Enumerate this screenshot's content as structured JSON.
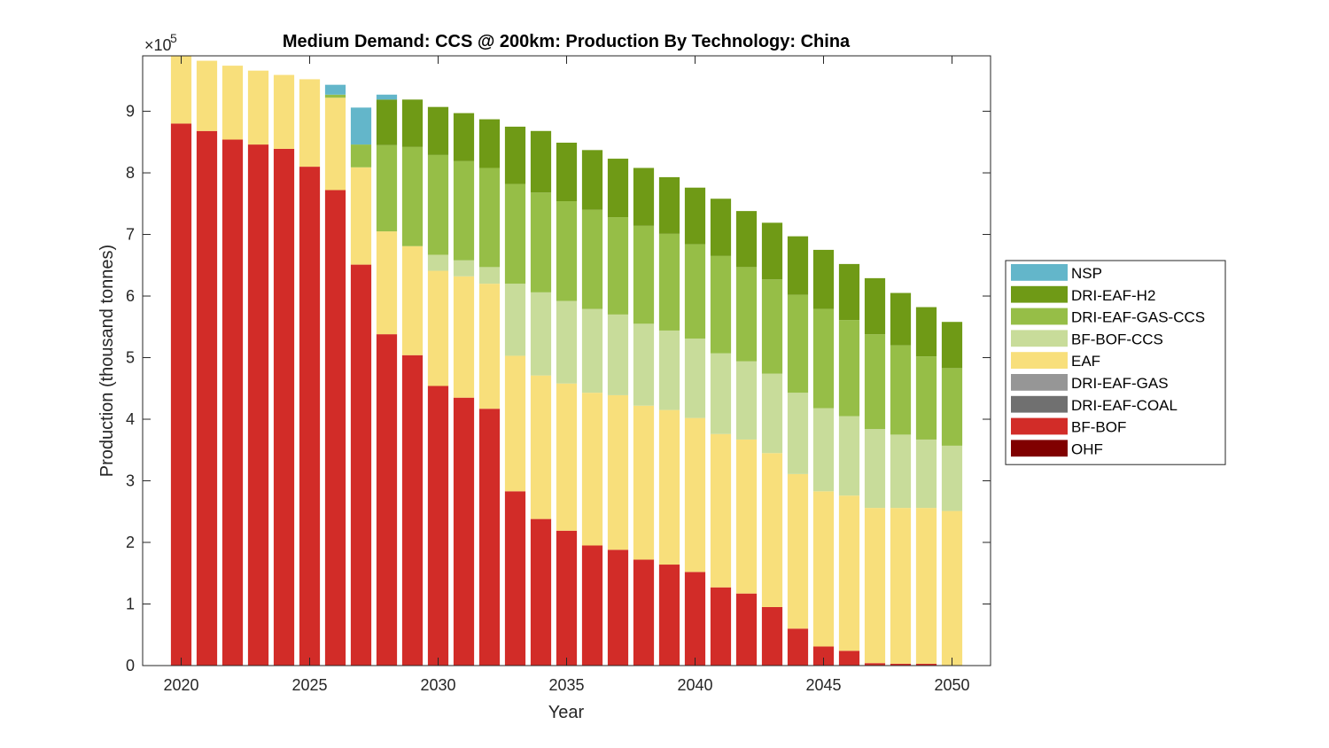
{
  "chart_data": {
    "type": "bar",
    "stacked": true,
    "title": "Medium Demand: CCS @ 200km: Production By Technology: China",
    "xlabel": "Year",
    "ylabel": "Production (thousand tonnes)",
    "y_exponent_label": "×10",
    "y_exponent_power": "5",
    "ylim": [
      0,
      9.9
    ],
    "y_scale_multiplier": 100000,
    "yticks": [
      0,
      1,
      2,
      3,
      4,
      5,
      6,
      7,
      8,
      9
    ],
    "xticks": [
      2020,
      2025,
      2030,
      2035,
      2040,
      2045,
      2050
    ],
    "xlim": [
      2018.5,
      2051.5
    ],
    "grid": false,
    "legend_position": "outside-right",
    "categories": [
      2020,
      2021,
      2022,
      2023,
      2024,
      2025,
      2026,
      2027,
      2028,
      2029,
      2030,
      2031,
      2032,
      2033,
      2034,
      2035,
      2036,
      2037,
      2038,
      2039,
      2040,
      2041,
      2042,
      2043,
      2044,
      2045,
      2046,
      2047,
      2048,
      2049,
      2050
    ],
    "series": [
      {
        "name": "OHF",
        "color": "#800000",
        "values": [
          0,
          0,
          0,
          0,
          0,
          0,
          0,
          0,
          0,
          0,
          0,
          0,
          0,
          0,
          0,
          0,
          0,
          0,
          0,
          0,
          0,
          0,
          0,
          0,
          0,
          0,
          0,
          0,
          0,
          0,
          0
        ]
      },
      {
        "name": "BF-BOF",
        "color": "#D22C28",
        "values": [
          8.8,
          8.68,
          8.54,
          8.46,
          8.39,
          8.1,
          7.72,
          6.51,
          5.38,
          5.04,
          4.54,
          4.35,
          4.17,
          2.83,
          2.38,
          2.19,
          1.95,
          1.88,
          1.72,
          1.64,
          1.52,
          1.27,
          1.17,
          0.95,
          0.6,
          0.31,
          0.24,
          0.04,
          0.03,
          0.03,
          0
        ]
      },
      {
        "name": "DRI-EAF-COAL",
        "color": "#707070",
        "values": [
          0,
          0,
          0,
          0,
          0,
          0,
          0,
          0,
          0,
          0,
          0,
          0,
          0,
          0,
          0,
          0,
          0,
          0,
          0,
          0,
          0,
          0,
          0,
          0,
          0,
          0,
          0,
          0,
          0,
          0,
          0
        ]
      },
      {
        "name": "DRI-EAF-GAS",
        "color": "#969696",
        "values": [
          0,
          0,
          0,
          0,
          0,
          0,
          0,
          0,
          0,
          0,
          0,
          0,
          0,
          0,
          0,
          0,
          0,
          0,
          0,
          0,
          0,
          0,
          0,
          0,
          0,
          0,
          0,
          0,
          0,
          0,
          0
        ]
      },
      {
        "name": "EAF",
        "color": "#F8DF7B",
        "values": [
          1.1,
          1.14,
          1.2,
          1.2,
          1.2,
          1.42,
          1.5,
          1.58,
          1.67,
          1.77,
          1.87,
          1.97,
          2.03,
          2.2,
          2.33,
          2.39,
          2.48,
          2.51,
          2.5,
          2.51,
          2.5,
          2.49,
          2.5,
          2.5,
          2.51,
          2.52,
          2.52,
          2.52,
          2.53,
          2.53,
          2.51
        ]
      },
      {
        "name": "BF-BOF-CCS",
        "color": "#C8DC9A",
        "values": [
          0,
          0,
          0,
          0,
          0,
          0,
          0,
          0,
          0,
          0,
          0.26,
          0.26,
          0.27,
          1.17,
          1.35,
          1.34,
          1.36,
          1.31,
          1.33,
          1.29,
          1.29,
          1.31,
          1.27,
          1.29,
          1.32,
          1.35,
          1.29,
          1.28,
          1.19,
          1.11,
          1.06
        ]
      },
      {
        "name": "DRI-EAF-GAS-CCS",
        "color": "#96BE47",
        "values": [
          0,
          0,
          0,
          0,
          0,
          0,
          0.05,
          0.37,
          1.4,
          1.61,
          1.62,
          1.61,
          1.61,
          1.62,
          1.62,
          1.62,
          1.61,
          1.58,
          1.59,
          1.57,
          1.53,
          1.58,
          1.53,
          1.53,
          1.59,
          1.61,
          1.56,
          1.54,
          1.45,
          1.35,
          1.26
        ]
      },
      {
        "name": "DRI-EAF-H2",
        "color": "#6F9A16",
        "values": [
          0,
          0,
          0,
          0,
          0,
          0,
          0,
          0,
          0.74,
          0.77,
          0.78,
          0.78,
          0.79,
          0.93,
          1.0,
          0.95,
          0.97,
          0.95,
          0.94,
          0.92,
          0.92,
          0.93,
          0.91,
          0.92,
          0.95,
          0.96,
          0.91,
          0.91,
          0.85,
          0.8,
          0.75
        ]
      },
      {
        "name": "NSP",
        "color": "#63B6CA",
        "values": [
          0,
          0,
          0,
          0,
          0,
          0,
          0.16,
          0.6,
          0.08,
          0,
          0,
          0,
          0,
          0,
          0,
          0,
          0,
          0,
          0,
          0,
          0,
          0,
          0,
          0,
          0,
          0,
          0,
          0,
          0,
          0,
          0
        ]
      }
    ],
    "legend_order": [
      "NSP",
      "DRI-EAF-H2",
      "DRI-EAF-GAS-CCS",
      "BF-BOF-CCS",
      "EAF",
      "DRI-EAF-GAS",
      "DRI-EAF-COAL",
      "BF-BOF",
      "OHF"
    ]
  }
}
